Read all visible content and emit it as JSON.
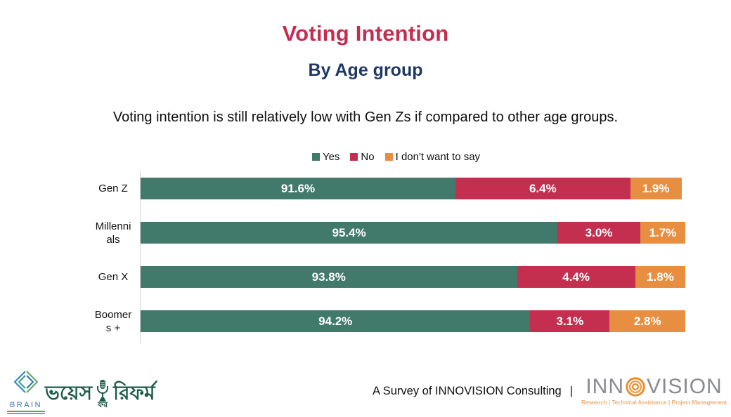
{
  "header": {
    "title": "Voting Intention",
    "subtitle": "By Age group",
    "description": "Voting intention is still relatively low with Gen Zs if compared to other age groups."
  },
  "chart_data": {
    "type": "bar",
    "orientation": "horizontal",
    "stacked": true,
    "categories": [
      "Gen Z",
      "Millennials",
      "Gen X",
      "Boomers +"
    ],
    "series": [
      {
        "name": "Yes",
        "color": "#41796B",
        "values": [
          91.6,
          95.4,
          93.8,
          94.2
        ],
        "labels": [
          "91.6%",
          "95.4%",
          "93.8%",
          "94.2%"
        ]
      },
      {
        "name": "No",
        "color": "#C42F50",
        "values": [
          6.4,
          3.0,
          4.4,
          3.1
        ],
        "labels": [
          "6.4%",
          "3.0%",
          "4.4%",
          "3.1%"
        ]
      },
      {
        "name": "I don't want to say",
        "color": "#E88E41",
        "values": [
          1.9,
          1.7,
          1.8,
          2.8
        ],
        "labels": [
          "1.9%",
          "1.7%",
          "1.8%",
          "2.8%"
        ]
      }
    ],
    "value_suffix": "%",
    "legend_position": "top",
    "grid": false,
    "display_widths_pct": [
      [
        57.8,
        32.1,
        9.4
      ],
      [
        76.7,
        15.2,
        8.3
      ],
      [
        69.1,
        21.7,
        9.2
      ],
      [
        71.6,
        14.6,
        13.9
      ]
    ]
  },
  "footer": {
    "survey_text": "A Survey of INNOVISION Consulting",
    "separator": "|",
    "brain_logo": {
      "text": "BRAIN"
    },
    "voice_logo": {
      "left": "ভয়েস",
      "mid": "ফর",
      "right": "রিফর্ম"
    },
    "innovision_logo": {
      "part1": "INN",
      "part2": "VISION",
      "tagline": "Research | Technical Assistance | Project Management"
    }
  },
  "colors": {
    "title": "#C52D50",
    "subtitle": "#203864",
    "bar_yes": "#41796B",
    "bar_no": "#C42F50",
    "bar_idwts": "#E88E41",
    "axis_line": "#D5D5D5",
    "logo_green": "#1E5B4B",
    "brain_blue": "#2E75B6",
    "brain_green": "#5BA85A",
    "innovision_gray": "#898B8E",
    "innovision_orange": "#E8954C"
  }
}
